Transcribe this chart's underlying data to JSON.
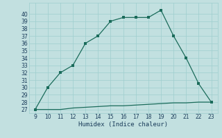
{
  "x": [
    9,
    10,
    11,
    12,
    13,
    14,
    15,
    16,
    17,
    18,
    19,
    20,
    21,
    22,
    23
  ],
  "y_main": [
    27,
    30,
    32,
    33,
    36,
    37,
    39,
    39.5,
    39.5,
    39.5,
    40.5,
    37,
    34,
    30.5,
    28
  ],
  "y_flat": [
    27,
    27,
    27,
    27.2,
    27.3,
    27.4,
    27.5,
    27.5,
    27.6,
    27.7,
    27.8,
    27.9,
    27.9,
    28,
    28
  ],
  "xlabel": "Humidex (Indice chaleur)",
  "ylim": [
    26.5,
    41.5
  ],
  "xlim": [
    8.5,
    23.5
  ],
  "yticks": [
    27,
    28,
    29,
    30,
    31,
    32,
    33,
    34,
    35,
    36,
    37,
    38,
    39,
    40
  ],
  "xticks": [
    9,
    10,
    11,
    12,
    13,
    14,
    15,
    16,
    17,
    18,
    19,
    20,
    21,
    22,
    23
  ],
  "line_color": "#1a6b5a",
  "bg_color": "#c2e0e0",
  "grid_color": "#9ecece",
  "font_color": "#1a3c5a",
  "tick_fontsize": 5.5,
  "xlabel_fontsize": 6.5
}
